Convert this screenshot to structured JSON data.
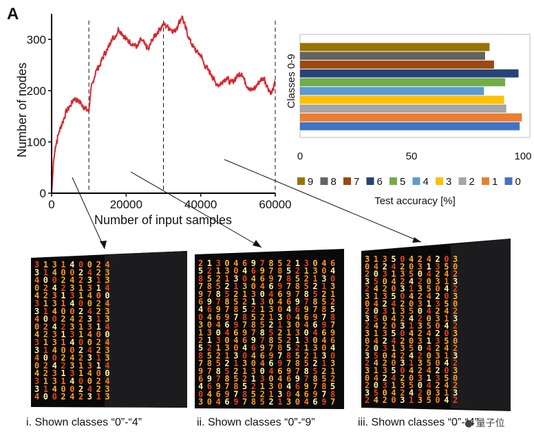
{
  "panel_label": "A",
  "chart_data": [
    {
      "type": "line",
      "xlabel": "Number of input samples",
      "ylabel": "Number of nodes",
      "xlim": [
        0,
        60000
      ],
      "ylim": [
        0,
        350
      ],
      "xticks": [
        "0",
        "20000",
        "40000",
        "60000"
      ],
      "yticks": [
        "0",
        "100",
        "200",
        "300"
      ],
      "vlines": [
        10000,
        30000,
        60000
      ],
      "series": [
        {
          "name": "nodes",
          "color": "#d7262e",
          "x": [
            0,
            500,
            1000,
            2000,
            3000,
            4000,
            5000,
            6000,
            7000,
            8000,
            9000,
            10000,
            10500,
            11000,
            12000,
            13000,
            14000,
            15000,
            16000,
            17000,
            18000,
            19000,
            20000,
            21000,
            22000,
            23000,
            24000,
            25000,
            26000,
            27000,
            28000,
            29000,
            30000,
            31000,
            32000,
            33000,
            34000,
            35000,
            36000,
            37000,
            38000,
            39000,
            40000,
            41000,
            42000,
            43000,
            44000,
            45000,
            46000,
            47000,
            48000,
            49000,
            50000,
            51000,
            52000,
            53000,
            54000,
            55000,
            56000,
            57000,
            58000,
            59000,
            60000
          ],
          "y": [
            0,
            60,
            90,
            120,
            140,
            160,
            170,
            185,
            180,
            175,
            165,
            160,
            200,
            215,
            240,
            250,
            270,
            280,
            300,
            305,
            320,
            310,
            300,
            295,
            290,
            285,
            300,
            290,
            280,
            300,
            310,
            320,
            330,
            325,
            320,
            315,
            330,
            345,
            320,
            300,
            285,
            275,
            270,
            250,
            240,
            230,
            215,
            210,
            220,
            225,
            215,
            220,
            230,
            235,
            215,
            205,
            200,
            210,
            220,
            225,
            205,
            195,
            215
          ]
        }
      ]
    },
    {
      "type": "bar",
      "orientation": "horizontal",
      "ylabel": "Classes 0-9",
      "xlabel": "Test accuracy [%]",
      "xlim": [
        0,
        100
      ],
      "xticks": [
        "0",
        "50",
        "100"
      ],
      "categories": [
        "0",
        "1",
        "2",
        "3",
        "4",
        "5",
        "6",
        "7",
        "8",
        "9"
      ],
      "values": [
        98.5,
        99.5,
        92.5,
        91.5,
        82.5,
        92,
        98,
        87,
        83,
        85
      ],
      "colors": [
        "#4472c4",
        "#ed7d31",
        "#a5a5a5",
        "#ffc000",
        "#5b9bd5",
        "#70ad47",
        "#264478",
        "#9e480e",
        "#636363",
        "#997300"
      ],
      "legend": [
        "9",
        "8",
        "7",
        "6",
        "5",
        "4",
        "3",
        "2",
        "1",
        "0"
      ],
      "legend_colors": [
        "#997300",
        "#636363",
        "#9e480e",
        "#264478",
        "#70ad47",
        "#5b9bd5",
        "#ffc000",
        "#a5a5a5",
        "#ed7d31",
        "#4472c4"
      ]
    }
  ],
  "captions": [
    "i. Shown classes “0”-“4”",
    "ii. Shown classes “0”-“9”",
    "iii. Shown classes “0”-“4”"
  ],
  "panel_digits": [
    [
      "2",
      "3",
      "0",
      "4",
      "1",
      "4",
      "2",
      "3",
      "1",
      "0"
    ],
    [
      "9",
      "5",
      "3",
      "6",
      "8",
      "1",
      "4",
      "7",
      "2",
      "0"
    ],
    [
      "5",
      "2",
      "0",
      "3",
      "4",
      "2",
      "1",
      "0",
      "4",
      "3"
    ]
  ],
  "watermark": "量子位"
}
